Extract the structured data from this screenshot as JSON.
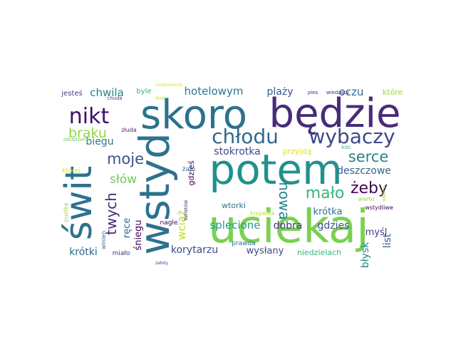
{
  "words": [
    {
      "text": "będzie",
      "color": "#472c7a"
    },
    {
      "text": "skoro",
      "color": "#2c728e"
    },
    {
      "text": "potem",
      "color": "#21918c"
    },
    {
      "text": "uciekaj",
      "color": "#7ad151"
    },
    {
      "text": "wstyd",
      "color": "#2c728e"
    },
    {
      "text": "świt",
      "color": "#2c728e"
    },
    {
      "text": "nikt",
      "color": "#3b0f70"
    },
    {
      "text": "chłodu",
      "color": "#31688e"
    },
    {
      "text": "wybaczy",
      "color": "#3e4a89"
    },
    {
      "text": "moje",
      "color": "#3b528b"
    },
    {
      "text": "braku",
      "color": "#8fd744"
    },
    {
      "text": "serce",
      "color": "#26828e"
    },
    {
      "text": "mało",
      "color": "#35b779"
    },
    {
      "text": "żeby",
      "color": "#440154"
    },
    {
      "text": "nowa",
      "color": "#26828e"
    },
    {
      "text": "twych",
      "color": "#482878"
    },
    {
      "text": "słów",
      "color": "#6ece58"
    },
    {
      "text": "hotelowym",
      "color": "#2a788e"
    },
    {
      "text": "stokrotka",
      "color": "#3e4989"
    },
    {
      "text": "deszczowe",
      "color": "#33638d"
    },
    {
      "text": "plaży",
      "color": "#38588c"
    },
    {
      "text": "oczu",
      "color": "#31688e"
    },
    {
      "text": "chwila",
      "color": "#26828e"
    },
    {
      "text": "biegu",
      "color": "#2a788e"
    },
    {
      "text": "wciąż",
      "color": "#b5de2b"
    },
    {
      "text": "splecione",
      "color": "#1f9e89"
    },
    {
      "text": "dobra",
      "color": "#46337e"
    },
    {
      "text": "gdzies",
      "color": "#3b528b"
    },
    {
      "text": "krótka",
      "color": "#2c728e"
    },
    {
      "text": "myśl",
      "color": "#433e85"
    },
    {
      "text": "błysk",
      "color": "#25858e"
    },
    {
      "text": "list",
      "color": "#3b528b"
    },
    {
      "text": "ręce",
      "color": "#31688e"
    },
    {
      "text": "śniegu",
      "color": "#440154"
    },
    {
      "text": "korytarzu",
      "color": "#3e4989"
    },
    {
      "text": "wysłany",
      "color": "#3e4989"
    },
    {
      "text": "krótki",
      "color": "#31688e"
    },
    {
      "text": "niedzielach",
      "color": "#35b779"
    },
    {
      "text": "gdzieś",
      "color": "#440154"
    },
    {
      "text": "wtorki",
      "color": "#2a788e"
    },
    {
      "text": "które",
      "color": "#a0da39"
    },
    {
      "text": "przyjdą",
      "color": "#dde318"
    },
    {
      "text": "jesteś",
      "color": "#433e85"
    },
    {
      "text": "byle",
      "color": "#35b779"
    },
    {
      "text": "żalu",
      "color": "#2c728e"
    },
    {
      "text": "nagle",
      "color": "#440154"
    },
    {
      "text": "prawda",
      "color": "#2c728e"
    },
    {
      "text": "kropelka",
      "color": "#b5de2b"
    },
    {
      "text": "warto",
      "color": "#8fd744"
    },
    {
      "text": "której",
      "color": "#dde318"
    },
    {
      "text": "pustkę",
      "color": "#a0da39"
    },
    {
      "text": "winien",
      "color": "#31688e"
    },
    {
      "text": "miało",
      "color": "#46337e"
    },
    {
      "text": "chuda",
      "color": "#3e4a89"
    },
    {
      "text": "złuda",
      "color": "#481f70"
    },
    {
      "text": "zdradzony",
      "color": "#6ece58"
    },
    {
      "text": "wstydliwe",
      "color": "#440154"
    },
    {
      "text": "kiść",
      "color": "#35b779"
    },
    {
      "text": "odloty",
      "color": "#a0da39"
    },
    {
      "text": "kwiatów",
      "color": "#433e85"
    },
    {
      "text": "pies",
      "color": "#482878"
    },
    {
      "text": "wiedzący",
      "color": "#482878"
    },
    {
      "text": "niezbawienie",
      "color": "#dde318"
    },
    {
      "text": "ktoś",
      "color": "#b5de2b"
    },
    {
      "text": "załoty",
      "color": "#3e4989"
    }
  ]
}
